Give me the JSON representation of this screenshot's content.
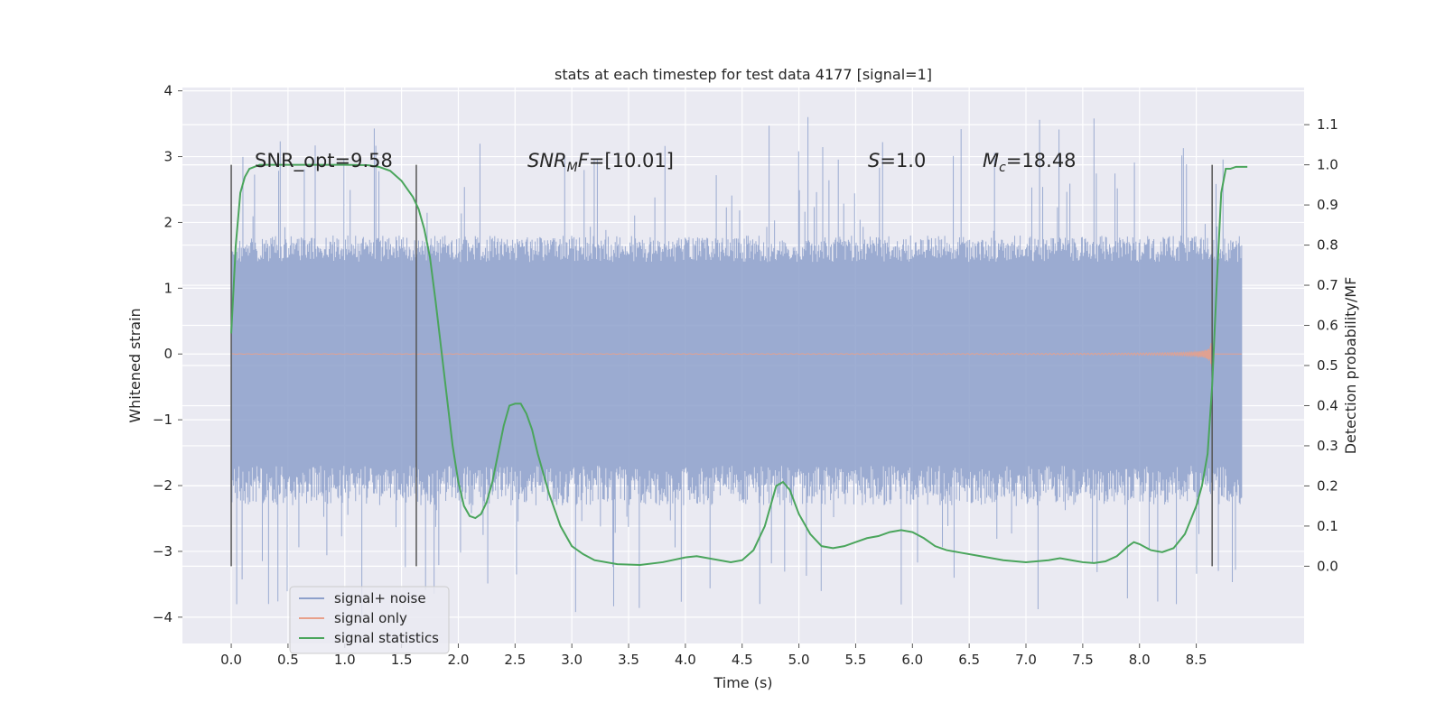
{
  "chart_data": {
    "type": "line",
    "title": "stats at each timestep for test data 4177 [signal=1]",
    "xlabel": "Time (s)",
    "ylabel": "Whitened strain",
    "y2label": "Detection probability/MF",
    "xlim": [
      -0.43,
      9.45
    ],
    "ylim": [
      -4.4,
      4.05
    ],
    "y2lim": [
      -0.1925,
      1.1925
    ],
    "xticks": [
      "0.0",
      "0.5",
      "1.0",
      "1.5",
      "2.0",
      "2.5",
      "3.0",
      "3.5",
      "4.0",
      "4.5",
      "5.0",
      "5.5",
      "6.0",
      "6.5",
      "7.0",
      "7.5",
      "8.0",
      "8.5"
    ],
    "yticks": [
      "4",
      "3",
      "2",
      "1",
      "0",
      "−1",
      "−2",
      "−3",
      "−4"
    ],
    "y2ticks": [
      "1.1",
      "1.0",
      "0.9",
      "0.8",
      "0.7",
      "0.6",
      "0.5",
      "0.4",
      "0.3",
      "0.2",
      "0.1",
      "0.0"
    ],
    "grid": true,
    "legend_position": "lower-left",
    "annotations": {
      "snr_opt": "SNR_opt=9.58",
      "snr_mf_label": "SNR",
      "snr_mf_sub": "M",
      "snr_mf_label2": "F",
      "snr_mf_value": "=[10.01]",
      "s_label": "S",
      "s_value": "=1.0",
      "mc_label": "M",
      "mc_sub": "c",
      "mc_value": "=18.48"
    },
    "series": [
      {
        "name": "signal+ noise",
        "color": "#8da0cb",
        "duration": 8.9,
        "noise_envelope": [
          -2.0,
          1.6
        ],
        "extreme_range": [
          -4.0,
          3.6
        ]
      },
      {
        "name": "signal only",
        "color": "#e8a08a",
        "merger_time": 8.64,
        "peak_amplitude": 1.1
      },
      {
        "name": "signal statistics",
        "color": "#4aa55c",
        "axis": "right",
        "x": [
          0.0,
          0.04,
          0.08,
          0.12,
          0.16,
          0.25,
          0.4,
          0.6,
          0.8,
          1.0,
          1.2,
          1.3,
          1.4,
          1.5,
          1.6,
          1.65,
          1.7,
          1.75,
          1.8,
          1.85,
          1.9,
          1.95,
          2.0,
          2.05,
          2.1,
          2.15,
          2.2,
          2.25,
          2.3,
          2.35,
          2.4,
          2.45,
          2.5,
          2.55,
          2.6,
          2.65,
          2.7,
          2.8,
          2.9,
          3.0,
          3.1,
          3.2,
          3.4,
          3.6,
          3.8,
          4.0,
          4.1,
          4.2,
          4.4,
          4.5,
          4.6,
          4.7,
          4.8,
          4.86,
          4.92,
          5.0,
          5.1,
          5.2,
          5.3,
          5.4,
          5.5,
          5.6,
          5.7,
          5.8,
          5.9,
          6.0,
          6.1,
          6.2,
          6.3,
          6.4,
          6.6,
          6.8,
          7.0,
          7.2,
          7.3,
          7.4,
          7.5,
          7.6,
          7.7,
          7.8,
          7.9,
          7.95,
          8.0,
          8.1,
          8.2,
          8.3,
          8.4,
          8.5,
          8.55,
          8.6,
          8.64,
          8.68,
          8.72,
          8.76,
          8.8,
          8.85,
          8.9,
          8.95
        ],
        "y": [
          0.58,
          0.8,
          0.93,
          0.97,
          0.99,
          1.0,
          1.0,
          1.0,
          1.0,
          1.0,
          0.999,
          0.995,
          0.985,
          0.96,
          0.92,
          0.89,
          0.84,
          0.77,
          0.66,
          0.54,
          0.42,
          0.3,
          0.21,
          0.15,
          0.125,
          0.12,
          0.13,
          0.16,
          0.21,
          0.28,
          0.35,
          0.4,
          0.405,
          0.405,
          0.38,
          0.34,
          0.28,
          0.18,
          0.1,
          0.05,
          0.03,
          0.015,
          0.005,
          0.003,
          0.01,
          0.022,
          0.025,
          0.02,
          0.01,
          0.015,
          0.04,
          0.1,
          0.2,
          0.21,
          0.19,
          0.13,
          0.08,
          0.05,
          0.045,
          0.05,
          0.06,
          0.07,
          0.075,
          0.085,
          0.09,
          0.085,
          0.07,
          0.05,
          0.04,
          0.035,
          0.025,
          0.015,
          0.01,
          0.015,
          0.02,
          0.015,
          0.01,
          0.008,
          0.012,
          0.025,
          0.05,
          0.06,
          0.055,
          0.04,
          0.035,
          0.045,
          0.08,
          0.15,
          0.2,
          0.28,
          0.45,
          0.7,
          0.93,
          0.99,
          0.99,
          0.995,
          0.995,
          0.995
        ]
      }
    ],
    "vertical_markers": [
      0.0,
      1.63,
      8.64
    ]
  }
}
